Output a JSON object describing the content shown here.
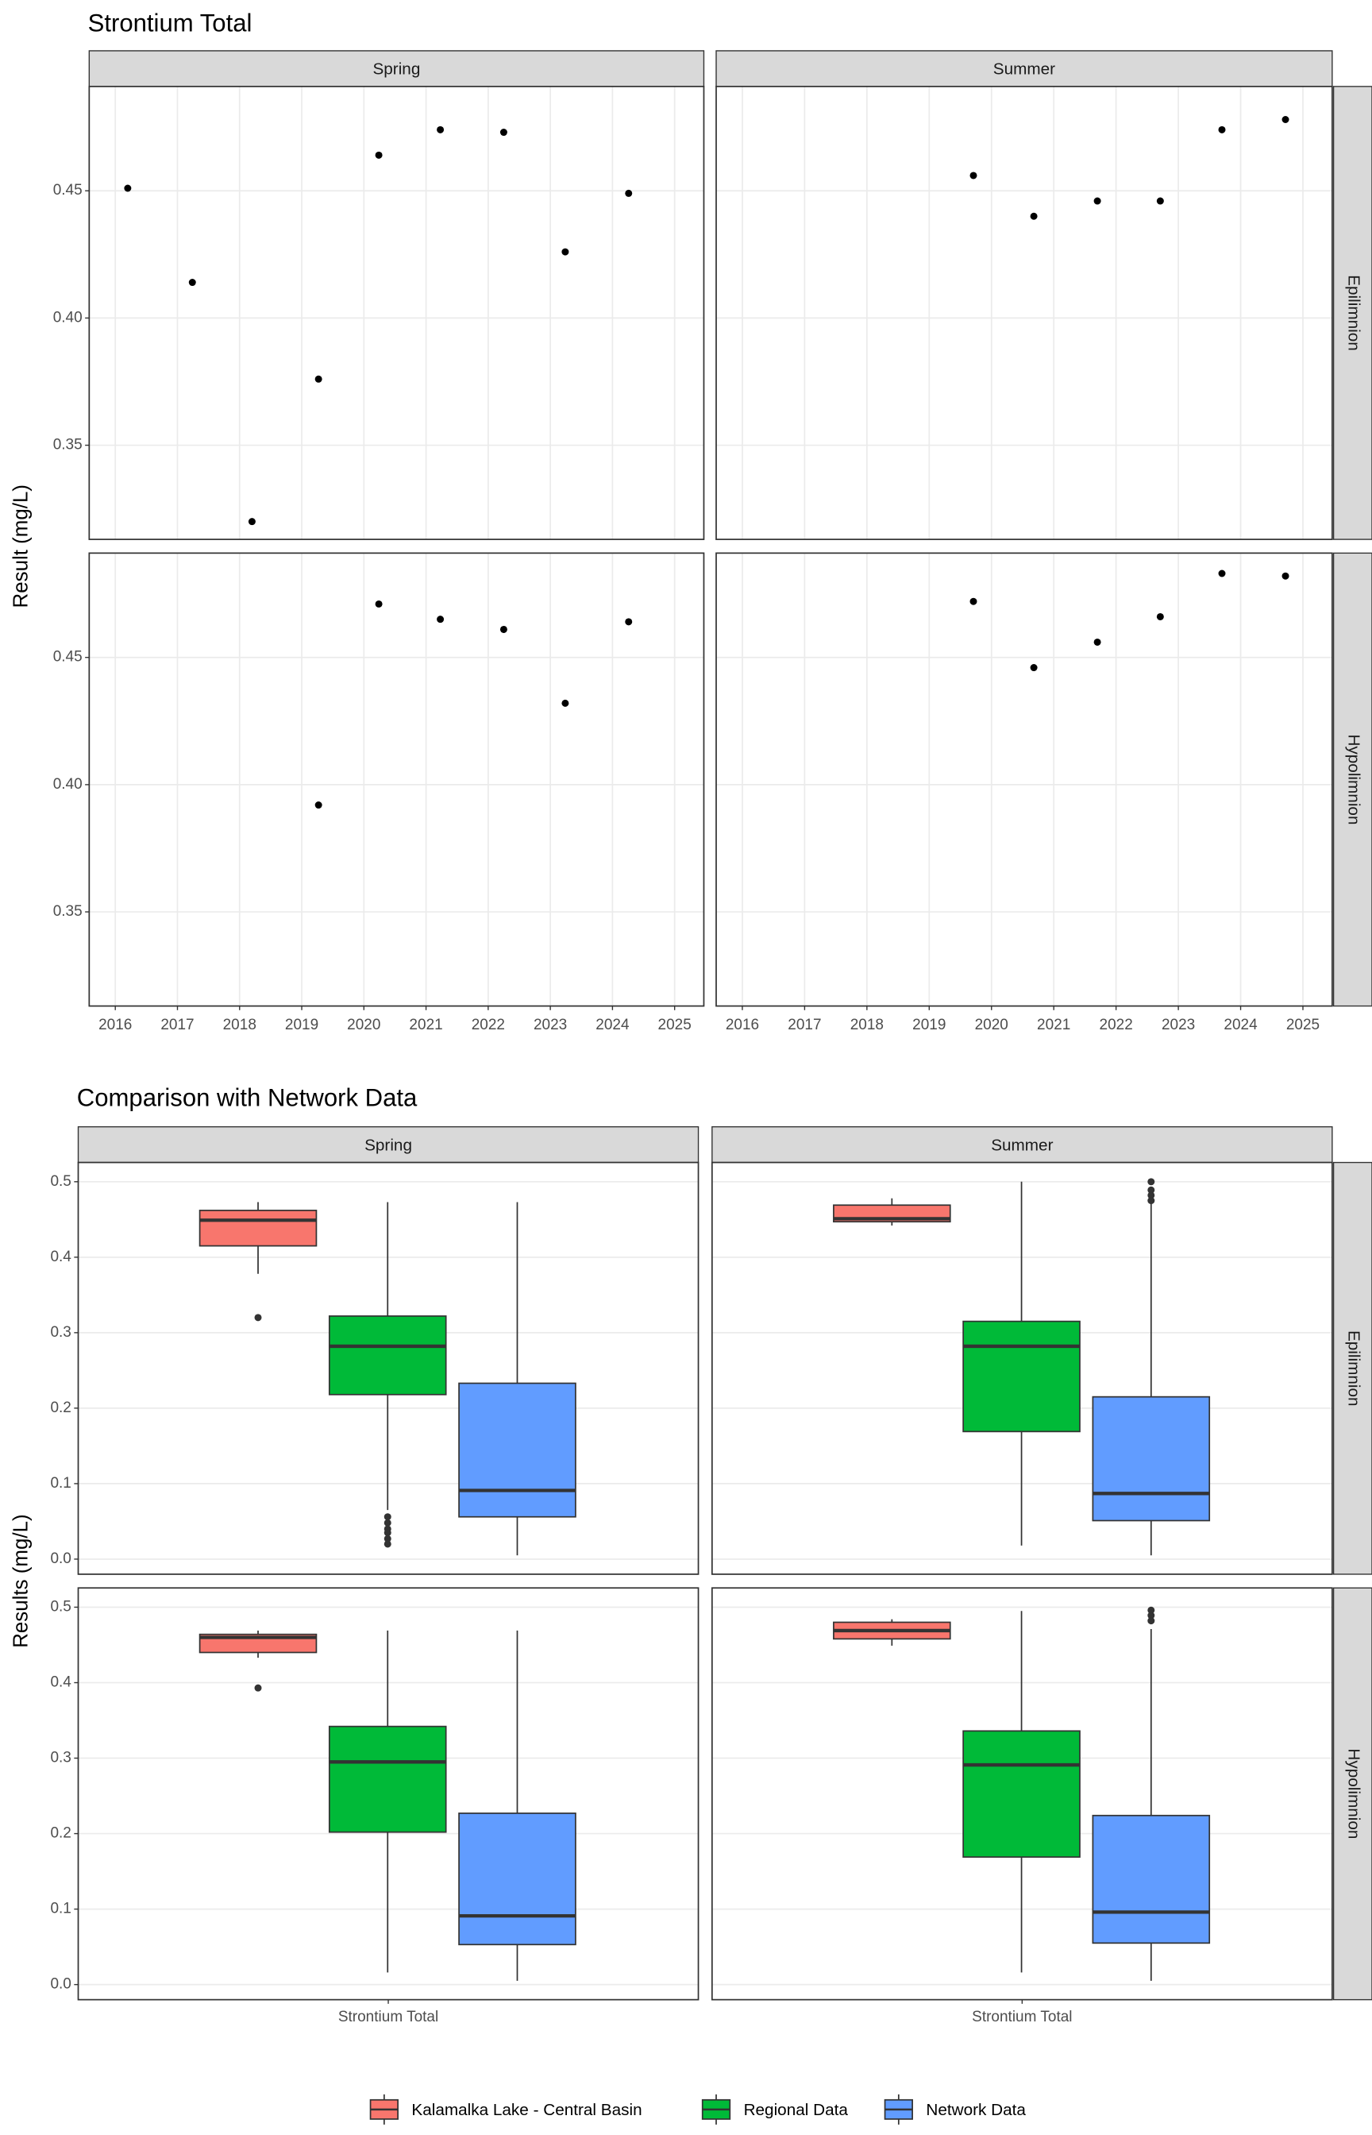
{
  "chart_data": [
    {
      "type": "scatter",
      "title": "Strontium Total",
      "y_label": "Result (mg/L)",
      "columns": [
        "Spring",
        "Summer"
      ],
      "rows": [
        "Epilimnion",
        "Hypolimnion"
      ],
      "color": "#000000",
      "grid": true,
      "xlim": [
        2015.58,
        2025.47
      ],
      "xticks": [
        2016,
        2017,
        2018,
        2019,
        2020,
        2021,
        2022,
        2023,
        2024,
        2025
      ],
      "ylim": [
        0.313,
        0.491
      ],
      "yticks": [
        0.35,
        {
          "value": 0.4,
          "label": "0.40"
        },
        0.45
      ],
      "panels": [
        [
          {
            "x": [
              2016.2,
              2017.24,
              2018.2,
              2019.27,
              2020.24,
              2021.23,
              2022.25,
              2023.24,
              2024.26
            ],
            "values": [
              0.451,
              0.414,
              0.32,
              0.376,
              0.464,
              0.474,
              0.473,
              0.426,
              0.449
            ]
          },
          {
            "x": [
              2019.71,
              2020.68,
              2021.7,
              2022.71,
              2023.7,
              2024.72
            ],
            "values": [
              0.456,
              0.44,
              0.446,
              0.446,
              0.474,
              0.478
            ]
          }
        ],
        [
          {
            "x": [
              2019.27,
              2020.24,
              2021.23,
              2022.25,
              2023.24,
              2024.26
            ],
            "values": [
              0.392,
              0.471,
              0.465,
              0.461,
              0.432,
              0.464
            ]
          },
          {
            "x": [
              2019.71,
              2020.68,
              2021.7,
              2022.71,
              2023.7,
              2024.72
            ],
            "values": [
              0.472,
              0.446,
              0.456,
              0.466,
              0.483,
              0.482
            ]
          }
        ]
      ]
    },
    {
      "type": "box",
      "title": "Comparison with Network Data",
      "y_label": "Results (mg/L)",
      "category": "Strontium Total",
      "columns": [
        "Spring",
        "Summer"
      ],
      "rows": [
        "Epilimnion",
        "Hypolimnion"
      ],
      "grid": true,
      "ylim": [
        -0.02,
        0.5255
      ],
      "yticks": [
        {
          "value": 0,
          "label": "0.0"
        },
        0.1,
        0.2,
        0.3,
        0.4,
        0.5
      ],
      "series": [
        {
          "name": "Kalamalka Lake - Central Basin",
          "color": "#F8766D"
        },
        {
          "name": "Regional Data",
          "color": "#00BA38"
        },
        {
          "name": "Network Data",
          "color": "#619CFF"
        }
      ],
      "panels": [
        [
          [
            {
              "min": 0.378,
              "q1": 0.415,
              "median": 0.449,
              "q3": 0.462,
              "max": 0.473,
              "outliers": [
                0.32
              ]
            },
            {
              "min": 0.065,
              "q1": 0.218,
              "median": 0.282,
              "q3": 0.322,
              "max": 0.473,
              "outliers": [
                0.056,
                0.048,
                0.04,
                0.035,
                0.027,
                0.02
              ]
            },
            {
              "min": 0.005,
              "q1": 0.056,
              "median": 0.091,
              "q3": 0.233,
              "max": 0.473,
              "outliers": []
            }
          ],
          [
            {
              "min": 0.442,
              "q1": 0.447,
              "median": 0.451,
              "q3": 0.469,
              "max": 0.478,
              "outliers": []
            },
            {
              "min": 0.018,
              "q1": 0.169,
              "median": 0.282,
              "q3": 0.315,
              "max": 0.5,
              "outliers": []
            },
            {
              "min": 0.005,
              "q1": 0.051,
              "median": 0.087,
              "q3": 0.215,
              "max": 0.473,
              "outliers": [
                0.5,
                0.489,
                0.482,
                0.475
              ]
            }
          ]
        ],
        [
          [
            {
              "min": 0.433,
              "q1": 0.44,
              "median": 0.46,
              "q3": 0.464,
              "max": 0.469,
              "outliers": [
                0.393
              ]
            },
            {
              "min": 0.016,
              "q1": 0.202,
              "median": 0.295,
              "q3": 0.342,
              "max": 0.469,
              "outliers": []
            },
            {
              "min": 0.005,
              "q1": 0.053,
              "median": 0.091,
              "q3": 0.227,
              "max": 0.469,
              "outliers": []
            }
          ],
          [
            {
              "min": 0.449,
              "q1": 0.458,
              "median": 0.469,
              "q3": 0.48,
              "max": 0.484,
              "outliers": []
            },
            {
              "min": 0.016,
              "q1": 0.169,
              "median": 0.291,
              "q3": 0.336,
              "max": 0.495,
              "outliers": []
            },
            {
              "min": 0.005,
              "q1": 0.055,
              "median": 0.096,
              "q3": 0.224,
              "max": 0.471,
              "outliers": [
                0.496,
                0.489,
                0.482
              ]
            }
          ]
        ]
      ]
    }
  ]
}
